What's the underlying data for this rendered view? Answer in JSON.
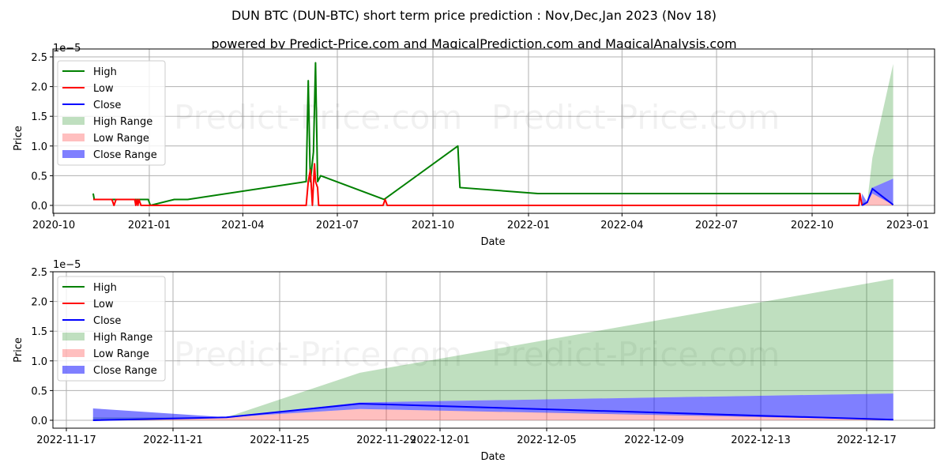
{
  "header": {
    "title": "DUN BTC (DUN-BTC) short term price prediction : Nov,Dec,Jan 2023 (Nov 18)",
    "subtitle": "powered by Predict-Price.com and MagicalPrediction.com and MagicalAnalysis.com"
  },
  "watermark": "Predict-Price.com",
  "legend": {
    "items": [
      {
        "label": "High",
        "type": "line",
        "color": "#008000"
      },
      {
        "label": "Low",
        "type": "line",
        "color": "#ff0000"
      },
      {
        "label": "Close",
        "type": "line",
        "color": "#0000ff"
      },
      {
        "label": "High Range",
        "type": "patch",
        "color": "#008000",
        "alpha": 0.25
      },
      {
        "label": "Low Range",
        "type": "patch",
        "color": "#ff0000",
        "alpha": 0.25
      },
      {
        "label": "Close Range",
        "type": "patch",
        "color": "#0000ff",
        "alpha": 0.5
      }
    ]
  },
  "colors": {
    "high": "#008000",
    "low": "#ff0000",
    "close": "#0000ff",
    "grid": "#b0b0b0"
  },
  "chart_data": [
    {
      "type": "line",
      "title": "",
      "xlabel": "Date",
      "ylabel": "Price",
      "y_scale_label": "1e−5",
      "ylim": [
        0,
        2.5
      ],
      "y_ticks": [
        "0.0",
        "0.5",
        "1.0",
        "1.5",
        "2.0",
        "2.5"
      ],
      "x_ticks": [
        "2020-10",
        "2021-01",
        "2021-04",
        "2021-07",
        "2021-10",
        "2022-01",
        "2022-04",
        "2022-07",
        "2022-10",
        "2023-01"
      ],
      "grid": true,
      "legend_position": "upper left",
      "series": [
        {
          "name": "High",
          "points": [
            [
              "2020-11-08",
              0.2
            ],
            [
              "2020-11-09",
              0.1
            ],
            [
              "2020-12-31",
              0.1
            ],
            [
              "2021-01-02",
              0.0
            ],
            [
              "2021-01-25",
              0.1
            ],
            [
              "2021-02-07",
              0.1
            ],
            [
              "2021-06-01",
              0.4
            ],
            [
              "2021-06-03",
              2.1
            ],
            [
              "2021-06-05",
              0.4
            ],
            [
              "2021-06-08",
              0.9
            ],
            [
              "2021-06-10",
              2.4
            ],
            [
              "2021-06-12",
              0.4
            ],
            [
              "2021-06-15",
              0.5
            ],
            [
              "2021-08-15",
              0.1
            ],
            [
              "2021-10-25",
              1.0
            ],
            [
              "2021-10-27",
              0.3
            ],
            [
              "2022-01-10",
              0.2
            ],
            [
              "2022-11-16",
              0.2
            ]
          ]
        },
        {
          "name": "Low",
          "points": [
            [
              "2020-11-08",
              0.1
            ],
            [
              "2020-11-26",
              0.1
            ],
            [
              "2020-11-28",
              0.0
            ],
            [
              "2020-11-30",
              0.1
            ],
            [
              "2020-12-18",
              0.1
            ],
            [
              "2020-12-19",
              0.0
            ],
            [
              "2020-12-20",
              0.1
            ],
            [
              "2020-12-21",
              0.0
            ],
            [
              "2020-12-22",
              0.1
            ],
            [
              "2020-12-24",
              0.0
            ],
            [
              "2021-06-01",
              0.0
            ],
            [
              "2021-06-03",
              0.4
            ],
            [
              "2021-06-05",
              0.6
            ],
            [
              "2021-06-07",
              0.0
            ],
            [
              "2021-06-09",
              0.7
            ],
            [
              "2021-06-10",
              0.4
            ],
            [
              "2021-06-12",
              0.3
            ],
            [
              "2021-06-13",
              0.0
            ],
            [
              "2021-08-14",
              0.0
            ],
            [
              "2021-08-16",
              0.1
            ],
            [
              "2021-08-18",
              0.0
            ],
            [
              "2022-11-15",
              0.0
            ],
            [
              "2022-11-16",
              0.2
            ],
            [
              "2022-11-18",
              0.0
            ]
          ]
        },
        {
          "name": "Close (forecast)",
          "points": [
            [
              "2022-11-18",
              0.0
            ],
            [
              "2022-11-23",
              0.05
            ],
            [
              "2022-11-28",
              0.28
            ],
            [
              "2022-12-18",
              0.01
            ]
          ]
        },
        {
          "name": "High Range",
          "upper": [
            [
              "2022-11-18",
              0.05
            ],
            [
              "2022-11-23",
              0.05
            ],
            [
              "2022-11-28",
              0.8
            ],
            [
              "2022-12-18",
              2.38
            ]
          ],
          "lower": [
            [
              "2022-11-18",
              0.0
            ],
            [
              "2022-11-23",
              0.05
            ],
            [
              "2022-11-28",
              0.3
            ],
            [
              "2022-12-18",
              0.45
            ]
          ]
        },
        {
          "name": "Low Range",
          "upper": [
            [
              "2022-11-18",
              0.0
            ],
            [
              "2022-11-23",
              0.05
            ],
            [
              "2022-11-28",
              0.2
            ],
            [
              "2022-12-18",
              0.02
            ]
          ],
          "lower": [
            [
              "2022-11-18",
              0.0
            ],
            [
              "2022-12-18",
              0.0
            ]
          ]
        },
        {
          "name": "Close Range",
          "upper": [
            [
              "2022-11-18",
              0.2
            ],
            [
              "2022-11-23",
              0.05
            ],
            [
              "2022-11-28",
              0.3
            ],
            [
              "2022-12-18",
              0.45
            ]
          ],
          "lower": [
            [
              "2022-11-18",
              0.0
            ],
            [
              "2022-11-23",
              0.05
            ],
            [
              "2022-11-28",
              0.2
            ],
            [
              "2022-12-18",
              0.01
            ]
          ]
        }
      ]
    },
    {
      "type": "area",
      "title": "",
      "xlabel": "Date",
      "ylabel": "Price",
      "y_scale_label": "1e−5",
      "ylim": [
        0,
        2.5
      ],
      "y_ticks": [
        "0.0",
        "0.5",
        "1.0",
        "1.5",
        "2.0",
        "2.5"
      ],
      "x_ticks": [
        "2022-11-17",
        "2022-11-21",
        "2022-11-25",
        "2022-11-29",
        "2022-12-01",
        "2022-12-05",
        "2022-12-09",
        "2022-12-13",
        "2022-12-17"
      ],
      "grid": true,
      "legend_position": "upper left",
      "categories": [
        "2022-11-18",
        "2022-11-23",
        "2022-11-28",
        "2022-12-18"
      ],
      "series": [
        {
          "name": "Close",
          "values": [
            0.0,
            0.05,
            0.28,
            0.01
          ]
        },
        {
          "name": "High Range upper",
          "values": [
            0.05,
            0.05,
            0.8,
            2.38
          ]
        },
        {
          "name": "High Range lower",
          "values": [
            0.0,
            0.05,
            0.3,
            0.45
          ]
        },
        {
          "name": "Low Range upper",
          "values": [
            0.0,
            0.05,
            0.19,
            0.02
          ]
        },
        {
          "name": "Low Range lower",
          "values": [
            0.0,
            0.0,
            0.0,
            0.0
          ]
        },
        {
          "name": "Close Range upper",
          "values": [
            0.2,
            0.05,
            0.3,
            0.45
          ]
        },
        {
          "name": "Close Range lower",
          "values": [
            0.0,
            0.05,
            0.19,
            0.01
          ]
        }
      ]
    }
  ]
}
